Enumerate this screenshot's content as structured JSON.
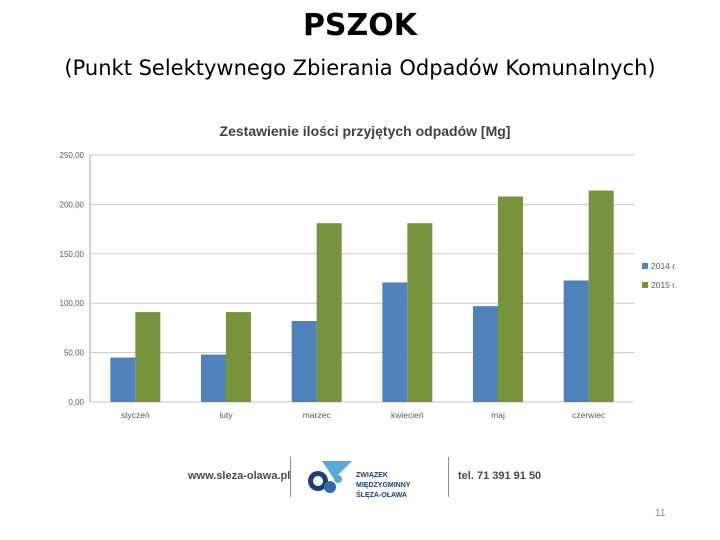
{
  "slide": {
    "title": "PSZOK",
    "subtitle": "(Punkt Selektywnego Zbierania Odpadów Komunalnych)",
    "page_number": "11"
  },
  "footer": {
    "url": "www.sleza-olawa.pl",
    "org_line1": "ZWIĄZEK MIĘDZYGMINNY",
    "org_line2": "ŚLĘZA-OŁAWA",
    "phone": "tel. 71 391 91 50",
    "logo_icon": "org-logo-icon"
  },
  "chart_data": {
    "type": "bar",
    "title": "Zestawienie ilości przyjętych odpadów [Mg]",
    "xlabel": "",
    "ylabel": "",
    "categories": [
      "styczeń",
      "luty",
      "marzec",
      "kwiecień",
      "maj",
      "czerwiec"
    ],
    "series": [
      {
        "name": "2014 r.",
        "color": "#4f81bd",
        "values": [
          45,
          48,
          82,
          121,
          97,
          123
        ]
      },
      {
        "name": "2015 r.",
        "color": "#77933c",
        "values": [
          91,
          91,
          181,
          181,
          208,
          214
        ]
      }
    ],
    "ylim": [
      0,
      250
    ],
    "yticks": [
      "0,00",
      "50,00",
      "100,00",
      "150,00",
      "200,00",
      "250,00"
    ],
    "ytick_values": [
      0,
      50,
      100,
      150,
      200,
      250
    ],
    "grid": true,
    "legend_position": "right"
  }
}
